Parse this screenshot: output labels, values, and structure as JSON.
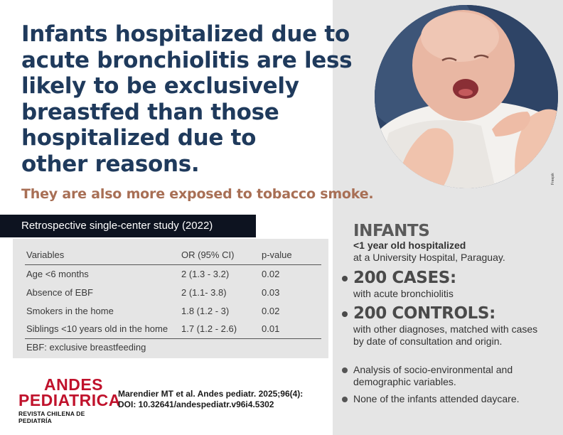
{
  "headline": {
    "lines": [
      "Infants hospitalized due to",
      "acute bronchiolitis are less",
      "likely to be exclusively",
      "breastfed than those",
      "hospitalized due to",
      "other reasons."
    ],
    "subhead": "They are also more exposed to tobacco smoke."
  },
  "photo": {
    "credit": "Freepik",
    "icon": "crying-infant-photo"
  },
  "study": {
    "label": "Retrospective single-center study (2022)"
  },
  "table": {
    "headers": [
      "Variables",
      "OR (95% CI)",
      "p-value"
    ],
    "rows": [
      [
        "Age <6 months",
        "2 (1.3 - 3.2)",
        "0.02"
      ],
      [
        "Absence of EBF",
        "2 (1.1- 3.8)",
        "0.03"
      ],
      [
        "Smokers in the home",
        "1.8 (1.2 - 3)",
        "0.02"
      ],
      [
        "Siblings <10 years old in the home",
        "1.7 (1.2 - 2.6)",
        "0.01"
      ]
    ],
    "note": "EBF: exclusive breastfeeding"
  },
  "logo": {
    "line1": "ANDES",
    "line2": "PEDIATRICA",
    "subtitle": "REVISTA CHILENA DE PEDIATRÍA",
    "color": "#c0122c"
  },
  "citation": {
    "line1": "Marendier MT et al. Andes pediatr. 2025;96(4):",
    "line2": "DOI: 10.32641/andespediatr.v96i4.5302"
  },
  "infants": {
    "title": "INFANTS",
    "line1": "<1 year old hospitalized",
    "line2": "at a University Hospital, Paraguay."
  },
  "cases": {
    "title": "200 CASES:",
    "desc": "with acute bronchiolitis"
  },
  "controls": {
    "title": "200 CONTROLS:",
    "desc": "with other diagnoses, matched with cases by date of consultation and origin."
  },
  "bullets": [
    "Analysis of socio-environmental and demographic variables.",
    "None of the infants attended daycare."
  ],
  "colors": {
    "navy": "#1f3a5c",
    "accent": "#a86f55",
    "panel": "#e5e5e5",
    "bar": "#0d1320"
  }
}
